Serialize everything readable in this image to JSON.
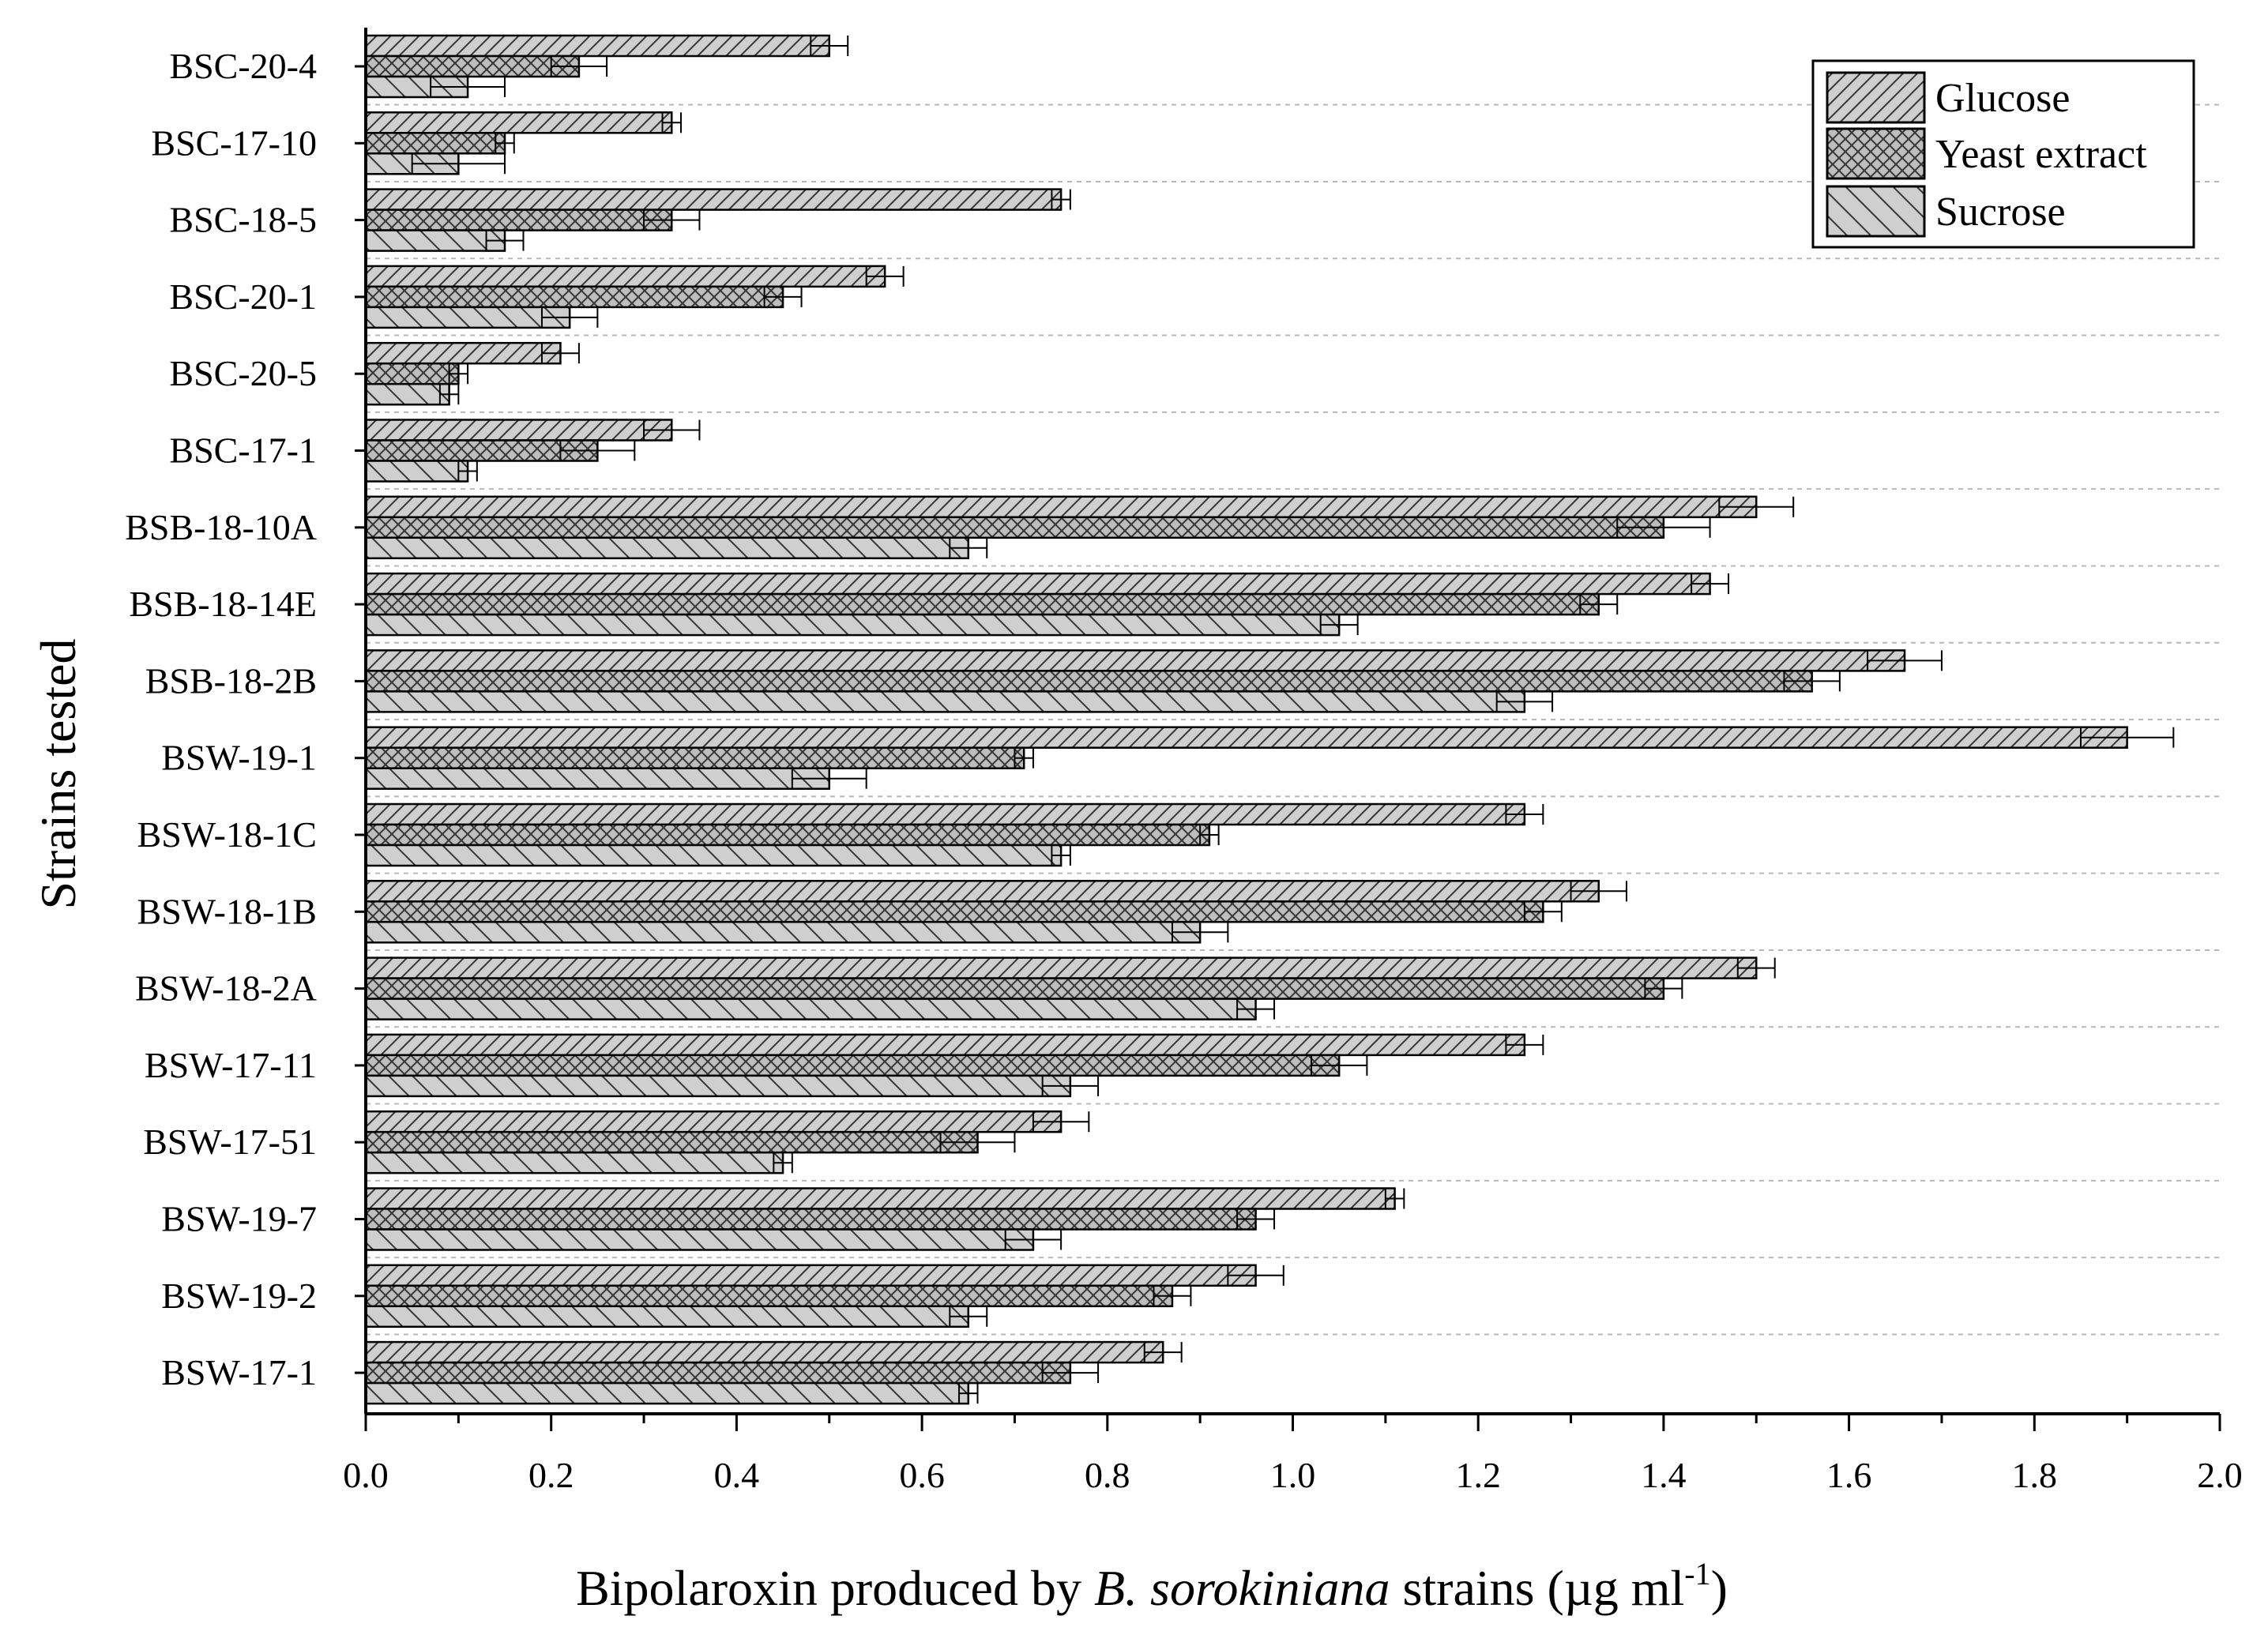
{
  "chart_data": {
    "type": "bar",
    "orientation": "horizontal",
    "xlabel_parts": {
      "prefix": "Bipolaroxin produced by ",
      "italic": "B. sorokiniana",
      "suffix": " strains (µg ml",
      "superscript": "-1",
      "close": ")"
    },
    "ylabel": "Strains tested",
    "xlim": [
      0.0,
      2.0
    ],
    "xticks": [
      "0.0",
      "0.2",
      "0.4",
      "0.6",
      "0.8",
      "1.0",
      "1.2",
      "1.4",
      "1.6",
      "1.8",
      "2.0"
    ],
    "legend_position": "top-right",
    "categories": [
      "BSC-20-4",
      "BSC-17-10",
      "BSC-18-5",
      "BSC-20-1",
      "BSC-20-5",
      "BSC-17-1",
      "BSB-18-10A",
      "BSB-18-14E",
      "BSB-18-2B",
      "BSW-19-1",
      "BSW-18-1C",
      "BSW-18-1B",
      "BSW-18-2A",
      "BSW-17-11",
      "BSW-17-51",
      "BSW-19-7",
      "BSW-19-2",
      "BSW-17-1"
    ],
    "series": [
      {
        "name": "Glucose",
        "pattern": "diag-right",
        "values": [
          0.5,
          0.33,
          0.75,
          0.56,
          0.21,
          0.33,
          1.5,
          1.45,
          1.66,
          1.9,
          1.25,
          1.33,
          1.5,
          1.25,
          0.75,
          1.11,
          0.96,
          0.86
        ],
        "errors": [
          0.02,
          0.01,
          0.01,
          0.02,
          0.02,
          0.03,
          0.04,
          0.02,
          0.04,
          0.05,
          0.02,
          0.03,
          0.02,
          0.02,
          0.03,
          0.01,
          0.03,
          0.02
        ]
      },
      {
        "name": "Yeast extract",
        "pattern": "cross",
        "values": [
          0.23,
          0.15,
          0.33,
          0.45,
          0.1,
          0.25,
          1.4,
          1.33,
          1.56,
          0.71,
          0.91,
          1.27,
          1.4,
          1.05,
          0.66,
          0.96,
          0.87,
          0.76
        ],
        "errors": [
          0.03,
          0.01,
          0.03,
          0.02,
          0.01,
          0.04,
          0.05,
          0.02,
          0.03,
          0.01,
          0.01,
          0.02,
          0.02,
          0.03,
          0.04,
          0.02,
          0.02,
          0.03
        ]
      },
      {
        "name": "Sucrose",
        "pattern": "diag-left",
        "values": [
          0.11,
          0.1,
          0.15,
          0.22,
          0.09,
          0.11,
          0.65,
          1.05,
          1.25,
          0.5,
          0.75,
          0.9,
          0.96,
          0.76,
          0.45,
          0.72,
          0.65,
          0.65
        ],
        "errors": [
          0.04,
          0.05,
          0.02,
          0.03,
          0.01,
          0.01,
          0.02,
          0.02,
          0.03,
          0.04,
          0.01,
          0.03,
          0.02,
          0.03,
          0.01,
          0.03,
          0.02,
          0.01
        ]
      }
    ]
  }
}
